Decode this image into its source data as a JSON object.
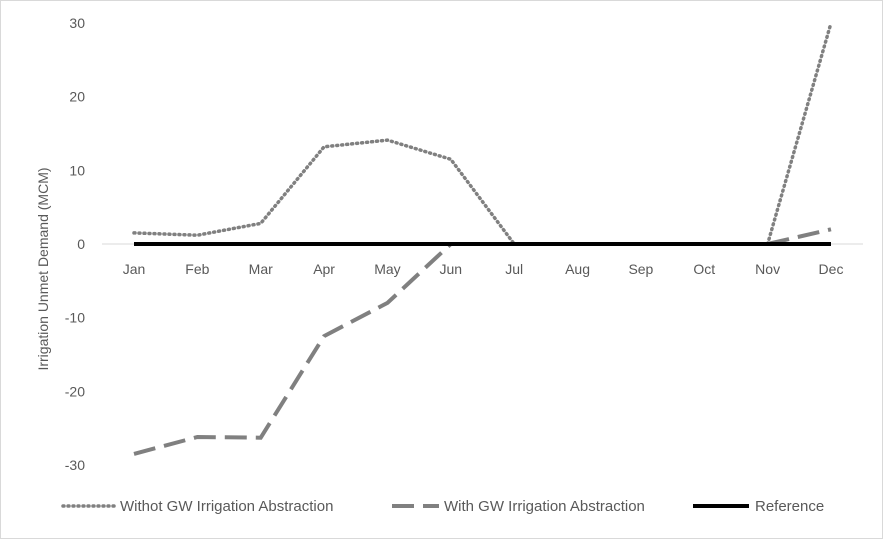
{
  "chart_data": {
    "type": "line",
    "categories": [
      "Jan",
      "Feb",
      "Mar",
      "Apr",
      "May",
      "Jun",
      "Jul",
      "Aug",
      "Sep",
      "Oct",
      "Nov",
      "Dec"
    ],
    "ylabel": "Irrigation Unmet Demand (MCM)",
    "xlabel": "",
    "title": "",
    "ylim": [
      -30,
      30
    ],
    "yticks": [
      -30,
      -20,
      -10,
      0,
      10,
      20,
      30
    ],
    "grid": false,
    "legend_position": "bottom",
    "series": [
      {
        "name": "Withot GW Irrigation Abstraction",
        "style": "dotted",
        "color": "#808080",
        "values": [
          1.5,
          1.2,
          2.8,
          13.2,
          14.1,
          11.5,
          0,
          null,
          null,
          null,
          0,
          30
        ]
      },
      {
        "name": "With GW Irrigation Abstraction",
        "style": "dashed",
        "color": "#808080",
        "values": [
          -28.5,
          -26.2,
          -26.3,
          -12.5,
          -8.0,
          0,
          null,
          null,
          null,
          null,
          0,
          2.0
        ]
      },
      {
        "name": "Reference",
        "style": "solid",
        "color": "#000000",
        "values": [
          0,
          0,
          0,
          0,
          0,
          0,
          0,
          0,
          0,
          0,
          0,
          0
        ]
      }
    ]
  }
}
